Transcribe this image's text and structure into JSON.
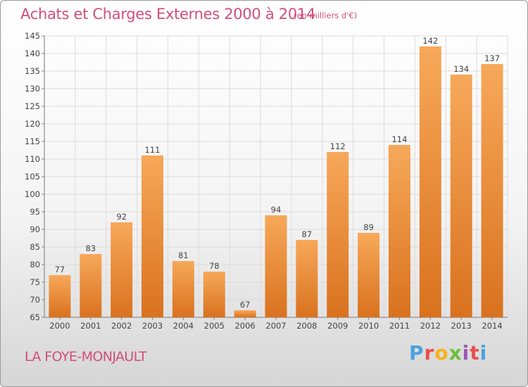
{
  "header": {
    "title": "Achats et Charges Externes 2000 à 2014",
    "unit": "(en milliers d'€)"
  },
  "footer": {
    "commune": "LA FOYE-MONJAULT",
    "brand": "Proxiti",
    "brand_colors": [
      "#4aa3df",
      "#e94e4e",
      "#f5b31c",
      "#6cbf3a",
      "#9b59b6",
      "#e94e4e",
      "#4aa3df"
    ]
  },
  "chart_data": {
    "type": "bar",
    "title": "Achats et Charges Externes 2000 à 2014",
    "subtitle": "(en milliers d'€)",
    "categories": [
      "2000",
      "2001",
      "2002",
      "2003",
      "2004",
      "2005",
      "2006",
      "2007",
      "2008",
      "2009",
      "2010",
      "2011",
      "2012",
      "2013",
      "2014"
    ],
    "values": [
      77,
      83,
      92,
      111,
      81,
      78,
      67,
      94,
      87,
      112,
      89,
      114,
      142,
      134,
      137
    ],
    "ylim": [
      65,
      145
    ],
    "yticks": [
      65,
      70,
      75,
      80,
      85,
      90,
      95,
      100,
      105,
      110,
      115,
      120,
      125,
      130,
      135,
      140,
      145
    ],
    "grid": true,
    "bar_color_top": "#f7a85a",
    "bar_color_bottom": "#d9721e",
    "xlabel": "",
    "ylabel": ""
  }
}
